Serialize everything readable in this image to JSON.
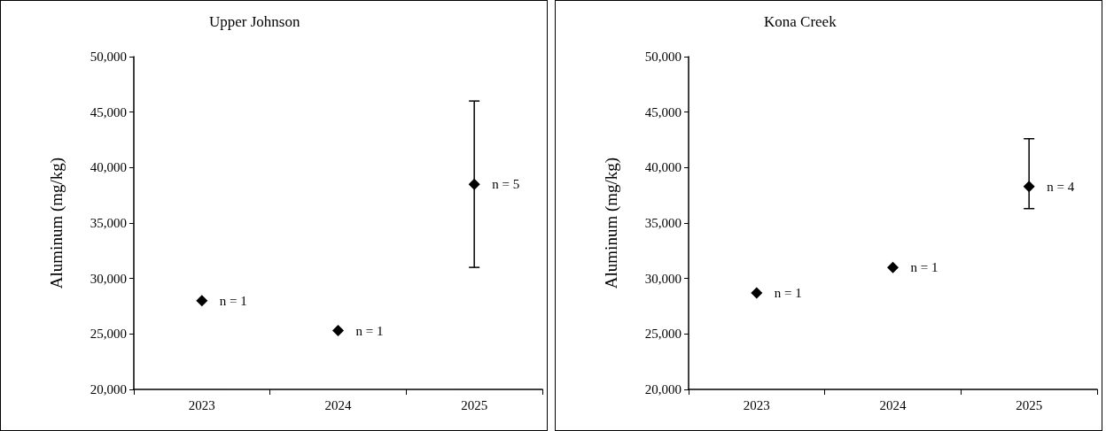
{
  "chart_data": [
    {
      "type": "scatter",
      "title": "Upper Johnson",
      "ylabel": "Aluminum (mg/kg)",
      "categories": [
        "2023",
        "2024",
        "2025"
      ],
      "series": [
        {
          "color": "#000000",
          "values": [
            28000,
            25300,
            38500
          ],
          "errors": [
            null,
            null,
            [
              31000,
              46000
            ]
          ]
        }
      ],
      "annotations": [
        {
          "text": "n = 1",
          "x": "2023",
          "y": 28000
        },
        {
          "text": "n = 1",
          "x": "2024",
          "y": 25300
        },
        {
          "text": "n = 5",
          "x": "2025",
          "y": 38500
        }
      ],
      "ylim": [
        20000,
        50000
      ],
      "yticks": [
        {
          "value": 20000,
          "label": "20,000"
        },
        {
          "value": 25000,
          "label": "25,000"
        },
        {
          "value": 30000,
          "label": "30,000"
        },
        {
          "value": 35000,
          "label": "35,000"
        },
        {
          "value": 40000,
          "label": "40,000"
        },
        {
          "value": 45000,
          "label": "45,000"
        },
        {
          "value": 50000,
          "label": "50,000"
        }
      ],
      "marker": "diamond",
      "grid": false
    },
    {
      "type": "scatter",
      "title": "Kona Creek",
      "ylabel": "Aluminum (mg/kg)",
      "categories": [
        "2023",
        "2024",
        "2025"
      ],
      "series": [
        {
          "color": "#000000",
          "values": [
            28700,
            31000,
            38300
          ],
          "errors": [
            null,
            null,
            [
              36300,
              42600
            ]
          ]
        }
      ],
      "annotations": [
        {
          "text": "n = 1",
          "x": "2023",
          "y": 28700
        },
        {
          "text": "n = 1",
          "x": "2024",
          "y": 31000
        },
        {
          "text": "n = 4",
          "x": "2025",
          "y": 38300
        }
      ],
      "ylim": [
        20000,
        50000
      ],
      "yticks": [
        {
          "value": 20000,
          "label": "20,000"
        },
        {
          "value": 25000,
          "label": "25,000"
        },
        {
          "value": 30000,
          "label": "30,000"
        },
        {
          "value": 35000,
          "label": "35,000"
        },
        {
          "value": 40000,
          "label": "40,000"
        },
        {
          "value": 45000,
          "label": "45,000"
        },
        {
          "value": 50000,
          "label": "50,000"
        }
      ],
      "marker": "diamond",
      "grid": false
    }
  ]
}
